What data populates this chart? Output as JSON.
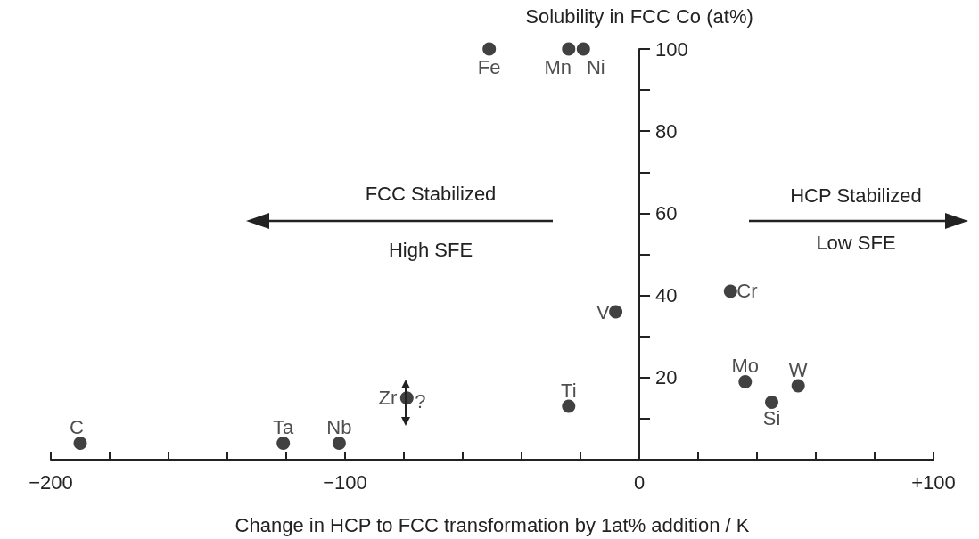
{
  "chart_data": {
    "type": "scatter",
    "xlabel": "Change in HCP to FCC transformation by 1at% addition / K",
    "ylabel": "Solubility in FCC Co (at%)",
    "marker": "circle",
    "grid": false,
    "x": [
      -51,
      -24,
      -19,
      -8,
      31,
      -24,
      36,
      45,
      54,
      -190,
      -121,
      -102,
      -79
    ],
    "series": [
      {
        "color": "#111111",
        "values": [
          100,
          100,
          100,
          36,
          41,
          13,
          19,
          14,
          18,
          4,
          4,
          4,
          15
        ]
      }
    ],
    "xlim": [
      -200,
      100
    ],
    "xticks": [
      {
        "value": -200,
        "label": "−200"
      },
      {
        "value": -180,
        "label": null
      },
      {
        "value": -160,
        "label": null
      },
      {
        "value": -140,
        "label": null
      },
      {
        "value": -120,
        "label": null
      },
      {
        "value": -100,
        "label": "−100"
      },
      {
        "value": -80,
        "label": null
      },
      {
        "value": -60,
        "label": null
      },
      {
        "value": -40,
        "label": null
      },
      {
        "value": -20,
        "label": null
      },
      0,
      {
        "value": 20,
        "label": null
      },
      {
        "value": 40,
        "label": null
      },
      {
        "value": 60,
        "label": null
      },
      {
        "value": 80,
        "label": null
      },
      {
        "value": 100,
        "label": "+100"
      }
    ],
    "ylim": [
      0,
      100
    ],
    "yticks": [
      {
        "value": 0,
        "label": null
      },
      {
        "value": 10,
        "label": null
      },
      20,
      {
        "value": 30,
        "label": null
      },
      40,
      {
        "value": 50,
        "label": null
      },
      60,
      {
        "value": 70,
        "label": null
      },
      80,
      {
        "value": 90,
        "label": null
      },
      100
    ],
    "annotations": [
      "FCC Stabilized",
      "High SFE",
      "HCP Stabilized",
      "Low SFE",
      {
        "text": "Fe",
        "x": -51,
        "y": 100
      },
      {
        "text": "Mn",
        "x": -24,
        "y": 100
      },
      {
        "text": "Ni",
        "x": -19,
        "y": 100
      },
      {
        "text": "V",
        "x": -8,
        "y": 36
      },
      {
        "text": "Cr",
        "x": 31,
        "y": 41
      },
      {
        "text": "Ti",
        "x": -24,
        "y": 13
      },
      {
        "text": "Mo",
        "x": 36,
        "y": 19
      },
      {
        "text": "Si",
        "x": 45,
        "y": 14
      },
      {
        "text": "W",
        "x": 54,
        "y": 18
      },
      {
        "text": "C",
        "x": -190,
        "y": 4
      },
      {
        "text": "Ta",
        "x": -121,
        "y": 4
      },
      {
        "text": "Nb",
        "x": -102,
        "y": 4
      },
      {
        "text": "Zr",
        "x": -79,
        "y": 15
      },
      {
        "text": "?",
        "x": -79,
        "y": 15
      }
    ]
  }
}
